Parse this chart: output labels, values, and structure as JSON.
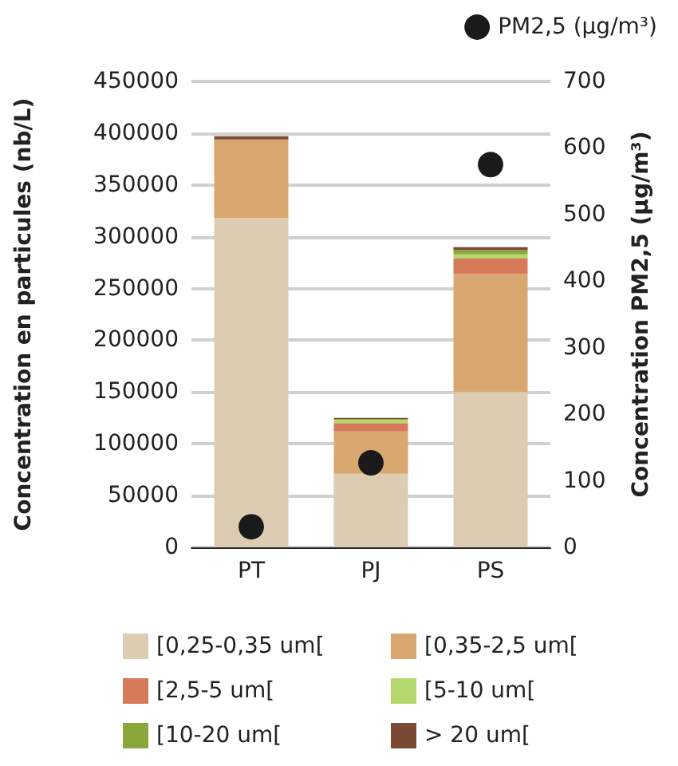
{
  "chart_data": {
    "type": "bar",
    "stacked": true,
    "categories": [
      "PT",
      "PJ",
      "PS"
    ],
    "ylabel": "Concentration en particules (nb/L)",
    "y2label": "Concentration PM2,5 (µg/m³)",
    "ylim": [
      0,
      450000
    ],
    "yticks": [
      0,
      50000,
      100000,
      150000,
      200000,
      250000,
      300000,
      350000,
      400000,
      450000
    ],
    "y2lim": [
      0,
      700
    ],
    "y2ticks": [
      0,
      100,
      200,
      300,
      400,
      500,
      600,
      700
    ],
    "grid": "y",
    "legend": "bottom",
    "series": [
      {
        "name": "[0,25-0,35 um[",
        "color": "#dccdb2",
        "values": [
          318000,
          71000,
          150000
        ]
      },
      {
        "name": "[0,35-2,5 um[",
        "color": "#d9a870",
        "values": [
          76000,
          41000,
          114000
        ]
      },
      {
        "name": "[2,5-5 um[",
        "color": "#d77a5a",
        "values": [
          null,
          8000,
          15000
        ]
      },
      {
        "name": "[5-10 um[",
        "color": "#b5d86e",
        "values": [
          null,
          3000,
          4000
        ]
      },
      {
        "name": "[10-20 um[",
        "color": "#8aa83a",
        "values": [
          null,
          1000,
          4000
        ]
      },
      {
        "name": "> 20 um[",
        "color": "#7a4a35",
        "values": [
          3000,
          1000,
          3000
        ]
      },
      {
        "name": "PM2,5 (µg/m³)",
        "type": "scatter",
        "axis": "y2",
        "color": "#1a1a1a",
        "marker": "circle",
        "x": [
          "PT",
          "PJ",
          "PS"
        ],
        "values": [
          31,
          127,
          575
        ]
      }
    ]
  }
}
